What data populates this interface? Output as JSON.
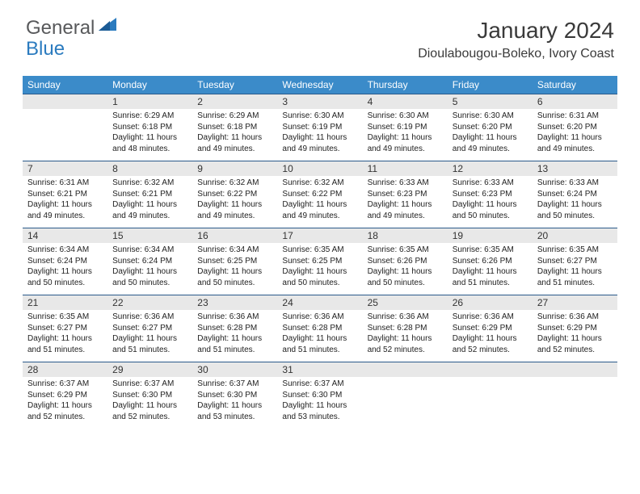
{
  "logo": {
    "text_top": "General",
    "text_bottom": "Blue"
  },
  "title": "January 2024",
  "location": "Dioulabougou-Boleko, Ivory Coast",
  "colors": {
    "header_bg": "#3b8bc9",
    "header_text": "#ffffff",
    "daynum_bg": "#e8e8e8",
    "divider": "#2a5a8a",
    "logo_gray": "#58595b",
    "logo_blue": "#2b7bbf"
  },
  "day_names": [
    "Sunday",
    "Monday",
    "Tuesday",
    "Wednesday",
    "Thursday",
    "Friday",
    "Saturday"
  ],
  "weeks": [
    {
      "nums": [
        "",
        "1",
        "2",
        "3",
        "4",
        "5",
        "6"
      ],
      "cells": [
        null,
        {
          "sunrise": "6:29 AM",
          "sunset": "6:18 PM",
          "daylight": "11 hours and 48 minutes."
        },
        {
          "sunrise": "6:29 AM",
          "sunset": "6:18 PM",
          "daylight": "11 hours and 49 minutes."
        },
        {
          "sunrise": "6:30 AM",
          "sunset": "6:19 PM",
          "daylight": "11 hours and 49 minutes."
        },
        {
          "sunrise": "6:30 AM",
          "sunset": "6:19 PM",
          "daylight": "11 hours and 49 minutes."
        },
        {
          "sunrise": "6:30 AM",
          "sunset": "6:20 PM",
          "daylight": "11 hours and 49 minutes."
        },
        {
          "sunrise": "6:31 AM",
          "sunset": "6:20 PM",
          "daylight": "11 hours and 49 minutes."
        }
      ]
    },
    {
      "nums": [
        "7",
        "8",
        "9",
        "10",
        "11",
        "12",
        "13"
      ],
      "cells": [
        {
          "sunrise": "6:31 AM",
          "sunset": "6:21 PM",
          "daylight": "11 hours and 49 minutes."
        },
        {
          "sunrise": "6:32 AM",
          "sunset": "6:21 PM",
          "daylight": "11 hours and 49 minutes."
        },
        {
          "sunrise": "6:32 AM",
          "sunset": "6:22 PM",
          "daylight": "11 hours and 49 minutes."
        },
        {
          "sunrise": "6:32 AM",
          "sunset": "6:22 PM",
          "daylight": "11 hours and 49 minutes."
        },
        {
          "sunrise": "6:33 AM",
          "sunset": "6:23 PM",
          "daylight": "11 hours and 49 minutes."
        },
        {
          "sunrise": "6:33 AM",
          "sunset": "6:23 PM",
          "daylight": "11 hours and 50 minutes."
        },
        {
          "sunrise": "6:33 AM",
          "sunset": "6:24 PM",
          "daylight": "11 hours and 50 minutes."
        }
      ]
    },
    {
      "nums": [
        "14",
        "15",
        "16",
        "17",
        "18",
        "19",
        "20"
      ],
      "cells": [
        {
          "sunrise": "6:34 AM",
          "sunset": "6:24 PM",
          "daylight": "11 hours and 50 minutes."
        },
        {
          "sunrise": "6:34 AM",
          "sunset": "6:24 PM",
          "daylight": "11 hours and 50 minutes."
        },
        {
          "sunrise": "6:34 AM",
          "sunset": "6:25 PM",
          "daylight": "11 hours and 50 minutes."
        },
        {
          "sunrise": "6:35 AM",
          "sunset": "6:25 PM",
          "daylight": "11 hours and 50 minutes."
        },
        {
          "sunrise": "6:35 AM",
          "sunset": "6:26 PM",
          "daylight": "11 hours and 50 minutes."
        },
        {
          "sunrise": "6:35 AM",
          "sunset": "6:26 PM",
          "daylight": "11 hours and 51 minutes."
        },
        {
          "sunrise": "6:35 AM",
          "sunset": "6:27 PM",
          "daylight": "11 hours and 51 minutes."
        }
      ]
    },
    {
      "nums": [
        "21",
        "22",
        "23",
        "24",
        "25",
        "26",
        "27"
      ],
      "cells": [
        {
          "sunrise": "6:35 AM",
          "sunset": "6:27 PM",
          "daylight": "11 hours and 51 minutes."
        },
        {
          "sunrise": "6:36 AM",
          "sunset": "6:27 PM",
          "daylight": "11 hours and 51 minutes."
        },
        {
          "sunrise": "6:36 AM",
          "sunset": "6:28 PM",
          "daylight": "11 hours and 51 minutes."
        },
        {
          "sunrise": "6:36 AM",
          "sunset": "6:28 PM",
          "daylight": "11 hours and 51 minutes."
        },
        {
          "sunrise": "6:36 AM",
          "sunset": "6:28 PM",
          "daylight": "11 hours and 52 minutes."
        },
        {
          "sunrise": "6:36 AM",
          "sunset": "6:29 PM",
          "daylight": "11 hours and 52 minutes."
        },
        {
          "sunrise": "6:36 AM",
          "sunset": "6:29 PM",
          "daylight": "11 hours and 52 minutes."
        }
      ]
    },
    {
      "nums": [
        "28",
        "29",
        "30",
        "31",
        "",
        "",
        ""
      ],
      "cells": [
        {
          "sunrise": "6:37 AM",
          "sunset": "6:29 PM",
          "daylight": "11 hours and 52 minutes."
        },
        {
          "sunrise": "6:37 AM",
          "sunset": "6:30 PM",
          "daylight": "11 hours and 52 minutes."
        },
        {
          "sunrise": "6:37 AM",
          "sunset": "6:30 PM",
          "daylight": "11 hours and 53 minutes."
        },
        {
          "sunrise": "6:37 AM",
          "sunset": "6:30 PM",
          "daylight": "11 hours and 53 minutes."
        },
        null,
        null,
        null
      ]
    }
  ],
  "labels": {
    "sunrise": "Sunrise:",
    "sunset": "Sunset:",
    "daylight": "Daylight:"
  }
}
